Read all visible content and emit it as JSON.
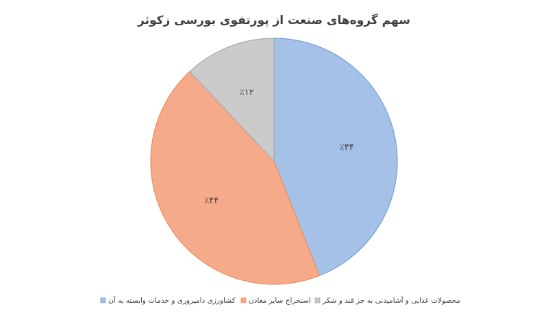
{
  "chart_data": {
    "type": "pie",
    "title": "سهم گروه‌های صنعت از پورتفوی بورسی زکوثر",
    "categories": [
      "کشاورزی دامپروری و خدمات وابسته به آن",
      "استخراج سایر معادن",
      "محصولات غذایی و آشامیدنی به جز قند و شکر"
    ],
    "values": [
      44,
      44,
      12
    ],
    "value_labels": [
      "٪۴۴",
      "٪۴۴",
      "٪۱۲"
    ],
    "colors": [
      "#a6c1e8",
      "#f5ab89",
      "#cbcbcb"
    ],
    "legend": "bottom"
  }
}
